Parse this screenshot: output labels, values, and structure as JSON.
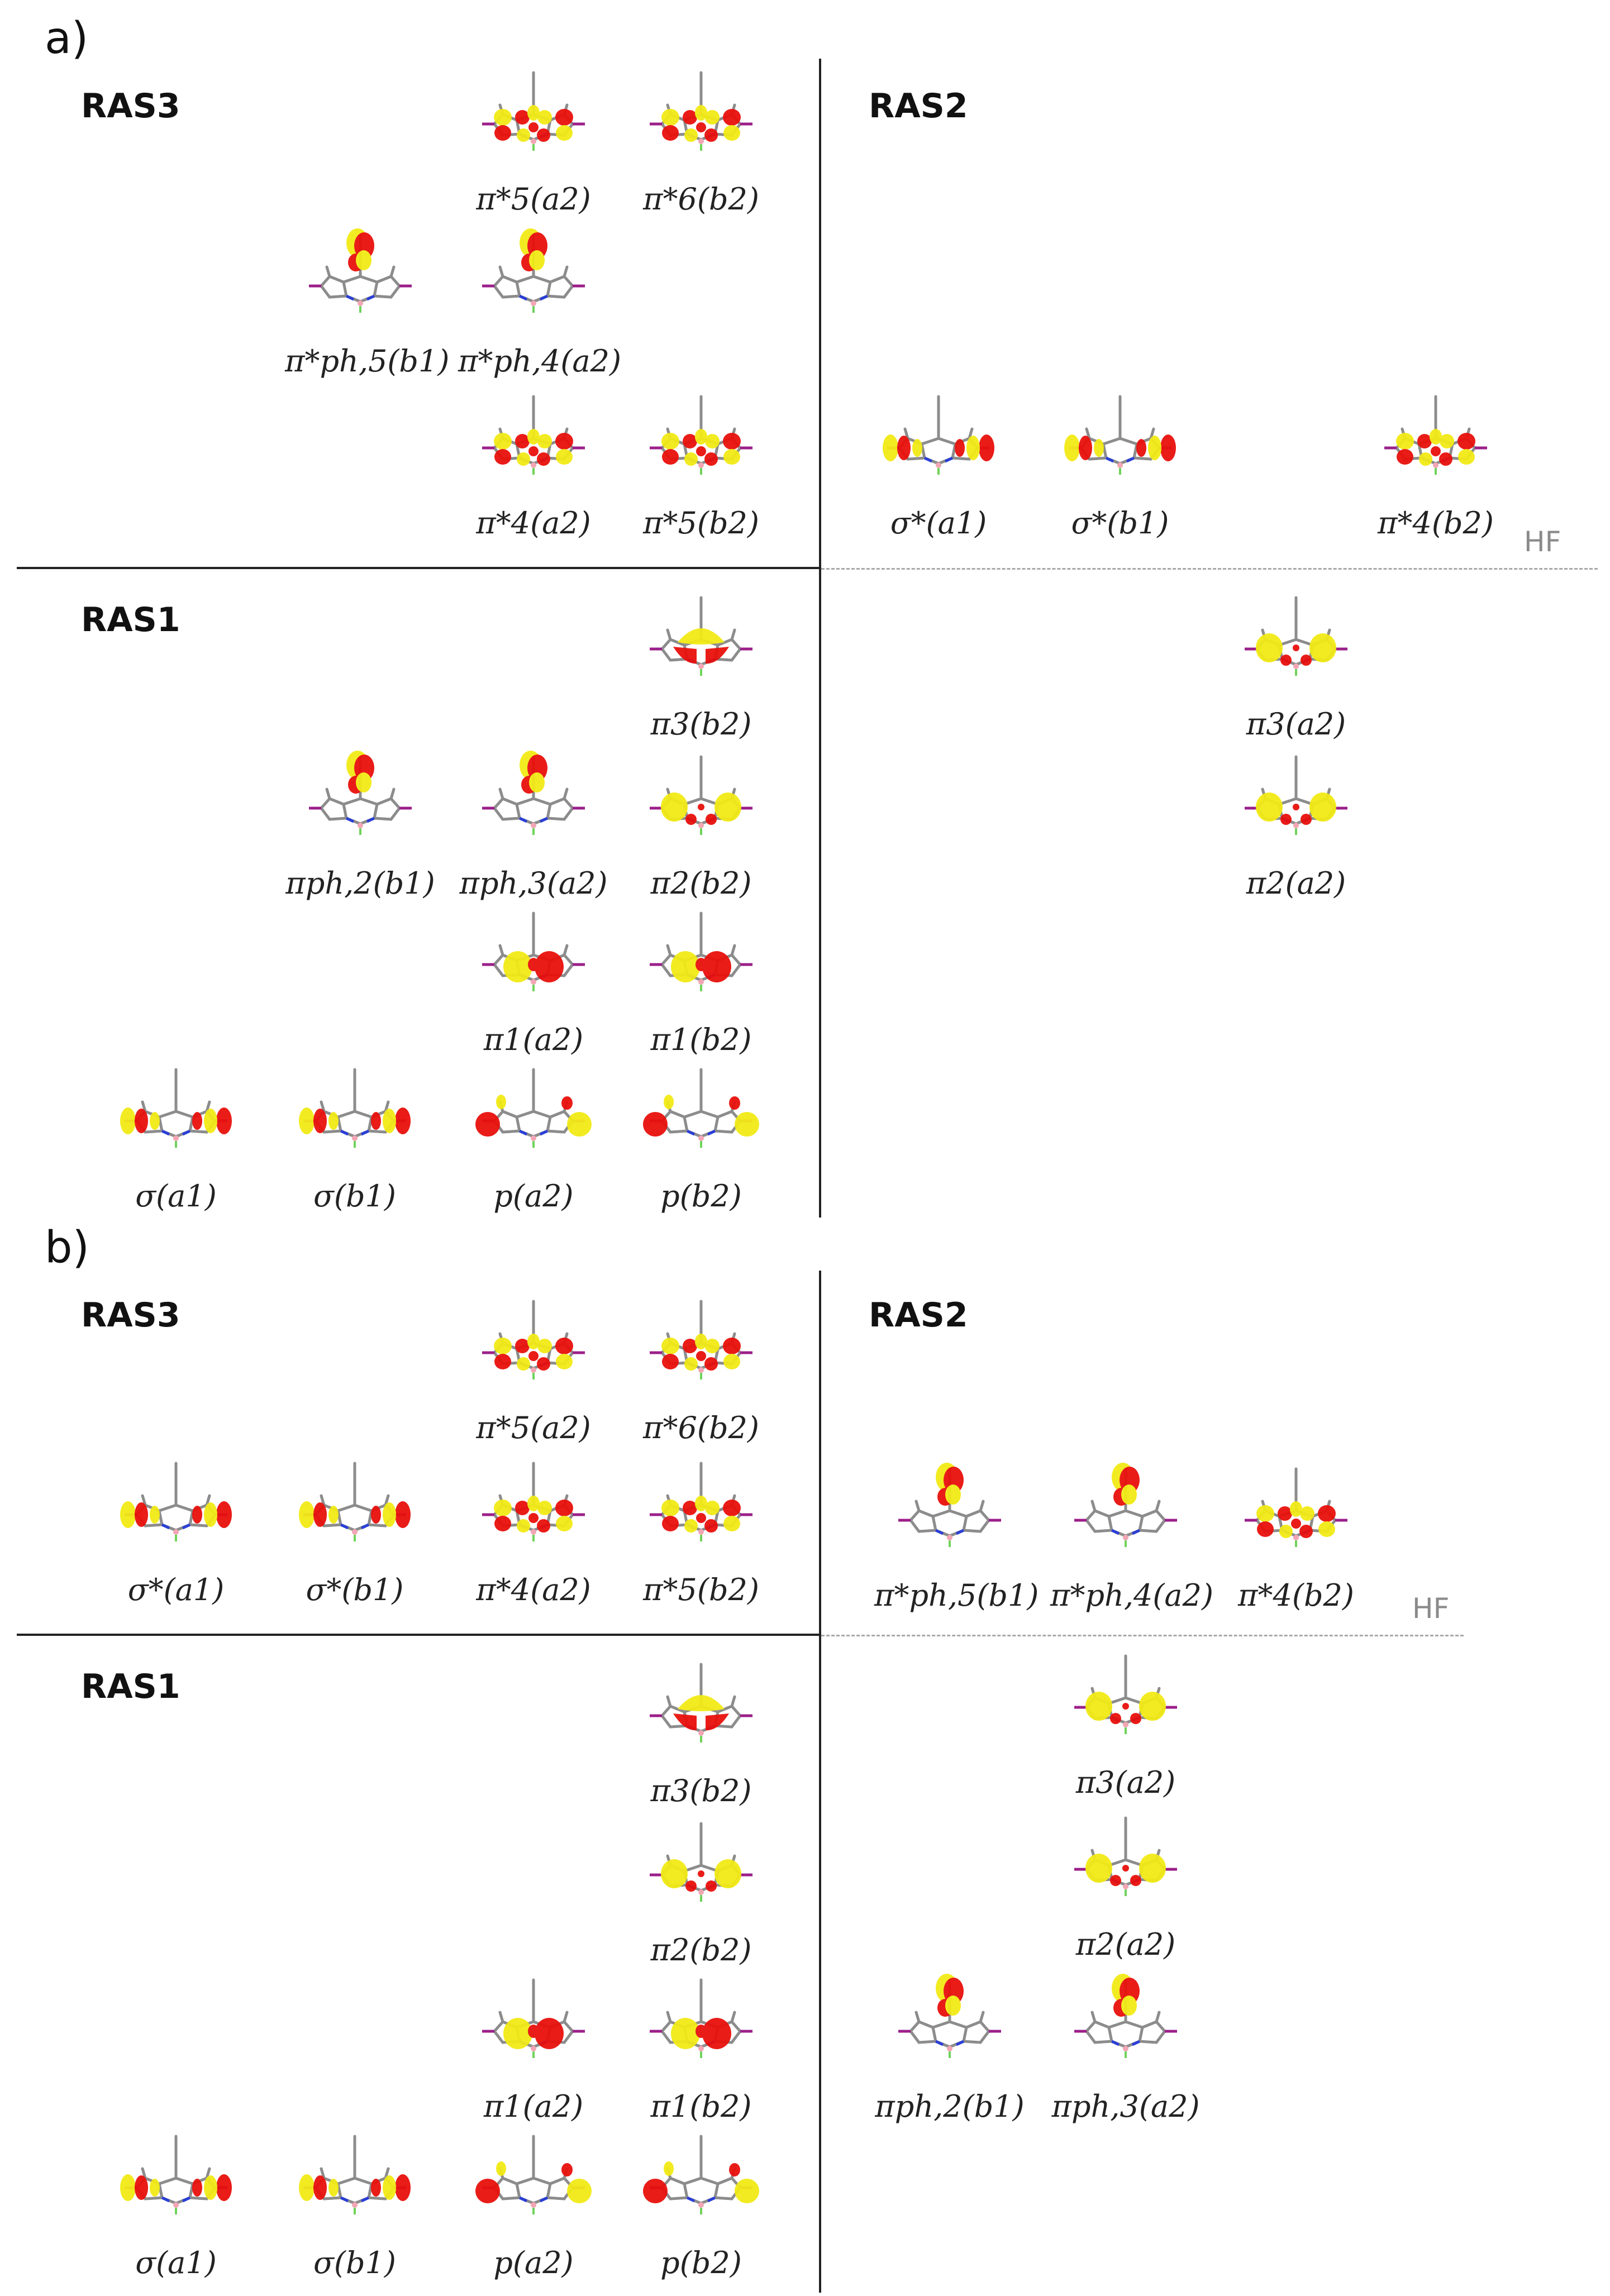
{
  "figure": {
    "panels": [
      {
        "id": "a",
        "label": "a)",
        "ras3_label": "RAS3",
        "ras2_label": "RAS2",
        "ras1_label": "RAS1",
        "hf_label": "HF",
        "orbitals": {
          "ras3_pi5_a2": {
            "label": "π*5(a2)",
            "lobe": "pi-star-ring"
          },
          "ras3_pi6_b2": {
            "label": "π*6(b2)",
            "lobe": "pi-star-ring"
          },
          "ras3_piph5_b1": {
            "label": "π*ph,5(b1)",
            "lobe": "phenyl-lobes"
          },
          "ras3_piph4_a2": {
            "label": "π*ph,4(a2)",
            "lobe": "phenyl-lobes"
          },
          "ras3_pi4_a2": {
            "label": "π*4(a2)",
            "lobe": "pi-star-ring"
          },
          "ras3_pi5_b2": {
            "label": "π*5(b2)",
            "lobe": "pi-star-ring"
          },
          "ras2_sigma_a1": {
            "label": "σ*(a1)",
            "lobe": "sigma-ends"
          },
          "ras2_sigma_b1": {
            "label": "σ*(b1)",
            "lobe": "sigma-ends"
          },
          "ras2_pi4_b2": {
            "label": "π*4(b2)",
            "lobe": "pi-star-ring"
          },
          "ras1_pi3_b2": {
            "label": "π3(b2)",
            "lobe": "pi-top-cap"
          },
          "ras1_piph2_b1": {
            "label": "πph,2(b1)",
            "lobe": "phenyl-lobes"
          },
          "ras1_piph3_a2": {
            "label": "πph,3(a2)",
            "lobe": "phenyl-lobes"
          },
          "ras1_pi2_b2": {
            "label": "π2(b2)",
            "lobe": "pi-side"
          },
          "ras1_pi1_a2": {
            "label": "π1(a2)",
            "lobe": "pi-center"
          },
          "ras1_pi1_b2": {
            "label": "π1(b2)",
            "lobe": "pi-center"
          },
          "ras1_sigma_a1": {
            "label": "σ(a1)",
            "lobe": "sigma-ends"
          },
          "ras1_sigma_b1": {
            "label": "σ(b1)",
            "lobe": "sigma-ends"
          },
          "ras1_p_a2": {
            "label": "p(a2)",
            "lobe": "p-ends"
          },
          "ras1_p_b2": {
            "label": "p(b2)",
            "lobe": "p-ends"
          },
          "ras2_pi3_a2": {
            "label": "π3(a2)",
            "lobe": "pi-side"
          },
          "ras2_pi2_a2": {
            "label": "π2(a2)",
            "lobe": "pi-side"
          }
        }
      },
      {
        "id": "b",
        "label": "b)",
        "ras3_label": "RAS3",
        "ras2_label": "RAS2",
        "ras1_label": "RAS1",
        "hf_label": "HF",
        "orbitals": {
          "ras3_pi5_a2": {
            "label": "π*5(a2)",
            "lobe": "pi-star-ring"
          },
          "ras3_pi6_b2": {
            "label": "π*6(b2)",
            "lobe": "pi-star-ring"
          },
          "ras3_sigma_a1": {
            "label": "σ*(a1)",
            "lobe": "sigma-ends"
          },
          "ras3_sigma_b1": {
            "label": "σ*(b1)",
            "lobe": "sigma-ends"
          },
          "ras3_pi4_a2": {
            "label": "π*4(a2)",
            "lobe": "pi-star-ring"
          },
          "ras3_pi5_b2": {
            "label": "π*5(b2)",
            "lobe": "pi-star-ring"
          },
          "ras2_piph5_b1": {
            "label": "π*ph,5(b1)",
            "lobe": "phenyl-lobes"
          },
          "ras2_piph4_a2": {
            "label": "π*ph,4(a2)",
            "lobe": "phenyl-lobes"
          },
          "ras2_pi4_b2": {
            "label": "π*4(b2)",
            "lobe": "pi-star-ring"
          },
          "ras1_pi3_b2": {
            "label": "π3(b2)",
            "lobe": "pi-top-cap"
          },
          "ras1_pi2_b2": {
            "label": "π2(b2)",
            "lobe": "pi-side"
          },
          "ras1_pi1_a2": {
            "label": "π1(a2)",
            "lobe": "pi-center"
          },
          "ras1_pi1_b2": {
            "label": "π1(b2)",
            "lobe": "pi-center"
          },
          "ras1_sigma_a1": {
            "label": "σ(a1)",
            "lobe": "sigma-ends"
          },
          "ras1_sigma_b1": {
            "label": "σ(b1)",
            "lobe": "sigma-ends"
          },
          "ras1_p_a2": {
            "label": "p(a2)",
            "lobe": "p-ends"
          },
          "ras1_p_b2": {
            "label": "p(b2)",
            "lobe": "p-ends"
          },
          "ras2_pi3_a2": {
            "label": "π3(a2)",
            "lobe": "pi-side"
          },
          "ras2_pi2_a2": {
            "label": "π2(a2)",
            "lobe": "pi-side"
          },
          "ras2_piph2_b1": {
            "label": "πph,2(b1)",
            "lobe": "phenyl-lobes"
          },
          "ras2_piph3_a2": {
            "label": "πph,3(a2)",
            "lobe": "phenyl-lobes"
          }
        }
      }
    ],
    "colors": {
      "positive_lobe": "#f2ea16",
      "negative_lobe": "#e8100c",
      "bond": "#8c8c8c",
      "nitrogen": "#2a3fd6",
      "boron": "#f2a6b4",
      "fluorine": "#6fd35b",
      "iodine": "#9b1f8a",
      "divider": "#222222",
      "hf_line": "#a8a8a8"
    }
  }
}
